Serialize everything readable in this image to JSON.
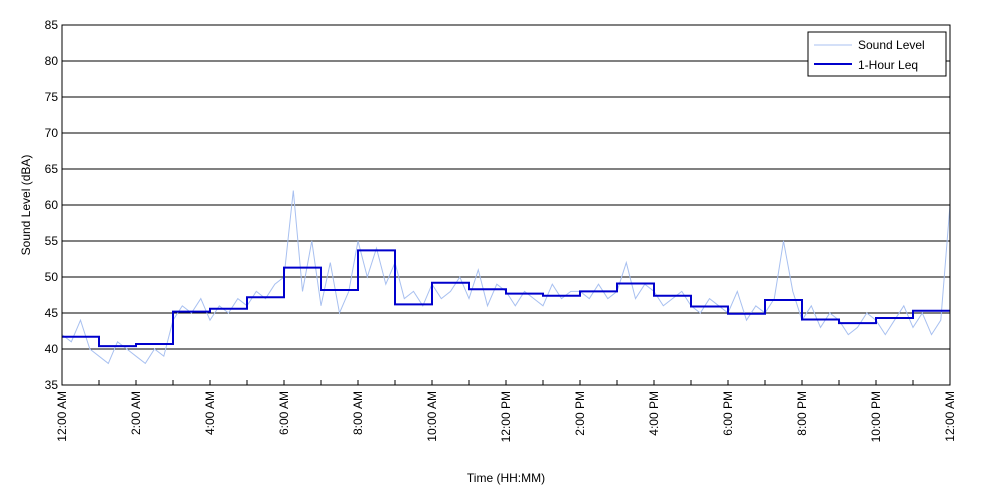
{
  "chart_data": {
    "type": "line",
    "title": "",
    "xlabel": "Time (HH:MM)",
    "ylabel": "Sound Level (dBA)",
    "ylim": [
      35,
      85
    ],
    "xlim_hours": [
      0,
      24
    ],
    "yticks": [
      35,
      40,
      45,
      50,
      55,
      60,
      65,
      70,
      75,
      80,
      85
    ],
    "xticks": [
      {
        "hour": 0,
        "label": "12:00 AM"
      },
      {
        "hour": 2,
        "label": "2:00 AM"
      },
      {
        "hour": 4,
        "label": "4:00 AM"
      },
      {
        "hour": 6,
        "label": "6:00 AM"
      },
      {
        "hour": 8,
        "label": "8:00 AM"
      },
      {
        "hour": 10,
        "label": "10:00 AM"
      },
      {
        "hour": 12,
        "label": "12:00 PM"
      },
      {
        "hour": 14,
        "label": "2:00 PM"
      },
      {
        "hour": 16,
        "label": "4:00 PM"
      },
      {
        "hour": 18,
        "label": "6:00 PM"
      },
      {
        "hour": 20,
        "label": "8:00 PM"
      },
      {
        "hour": 22,
        "label": "10:00 PM"
      },
      {
        "hour": 24,
        "label": "12:00 AM"
      }
    ],
    "grid": "horizontal",
    "legend_position": "top-right",
    "series": [
      {
        "name": "Sound Level",
        "color": "#a8c0f0",
        "x": [
          0.0,
          0.25,
          0.5,
          0.75,
          1.0,
          1.25,
          1.5,
          1.75,
          2.0,
          2.25,
          2.5,
          2.75,
          3.0,
          3.25,
          3.5,
          3.75,
          4.0,
          4.25,
          4.5,
          4.75,
          5.0,
          5.25,
          5.5,
          5.75,
          6.0,
          6.25,
          6.5,
          6.75,
          7.0,
          7.25,
          7.5,
          7.75,
          8.0,
          8.25,
          8.5,
          8.75,
          9.0,
          9.25,
          9.5,
          9.75,
          10.0,
          10.25,
          10.5,
          10.75,
          11.0,
          11.25,
          11.5,
          11.75,
          12.0,
          12.25,
          12.5,
          12.75,
          13.0,
          13.25,
          13.5,
          13.75,
          14.0,
          14.25,
          14.5,
          14.75,
          15.0,
          15.25,
          15.5,
          15.75,
          16.0,
          16.25,
          16.5,
          16.75,
          17.0,
          17.25,
          17.5,
          17.75,
          18.0,
          18.25,
          18.5,
          18.75,
          19.0,
          19.25,
          19.5,
          19.75,
          20.0,
          20.25,
          20.5,
          20.75,
          21.0,
          21.25,
          21.5,
          21.75,
          22.0,
          22.25,
          22.5,
          22.75,
          23.0,
          23.25,
          23.5,
          23.75,
          24.0
        ],
        "y": [
          42,
          41,
          44,
          40,
          39,
          38,
          41,
          40,
          39,
          38,
          40,
          39,
          44,
          46,
          45,
          47,
          44,
          46,
          45,
          47,
          46,
          48,
          47,
          49,
          50,
          62,
          48,
          55,
          46,
          52,
          45,
          48,
          55,
          50,
          54,
          49,
          52,
          47,
          48,
          46,
          49,
          47,
          48,
          50,
          47,
          51,
          46,
          49,
          48,
          46,
          48,
          47,
          46,
          49,
          47,
          48,
          48,
          47,
          49,
          47,
          48,
          52,
          47,
          49,
          48,
          46,
          47,
          48,
          46,
          45,
          47,
          46,
          45,
          48,
          44,
          46,
          45,
          47,
          55,
          48,
          44,
          46,
          43,
          45,
          44,
          42,
          43,
          45,
          44,
          42,
          44,
          46,
          43,
          45,
          42,
          44,
          60
        ]
      },
      {
        "name": "1-Hour Leq",
        "color": "#0000cc",
        "step": "post",
        "x": [
          0,
          1,
          2,
          3,
          4,
          5,
          6,
          7,
          8,
          9,
          10,
          11,
          12,
          13,
          14,
          15,
          16,
          17,
          18,
          19,
          20,
          21,
          22,
          23
        ],
        "y": [
          41.7,
          40.4,
          40.7,
          45.2,
          45.6,
          47.2,
          51.3,
          48.2,
          53.7,
          46.2,
          49.2,
          48.3,
          47.7,
          47.4,
          48.0,
          49.1,
          47.4,
          45.9,
          44.9,
          46.8,
          44.1,
          43.6,
          44.3,
          45.3
        ]
      }
    ]
  }
}
